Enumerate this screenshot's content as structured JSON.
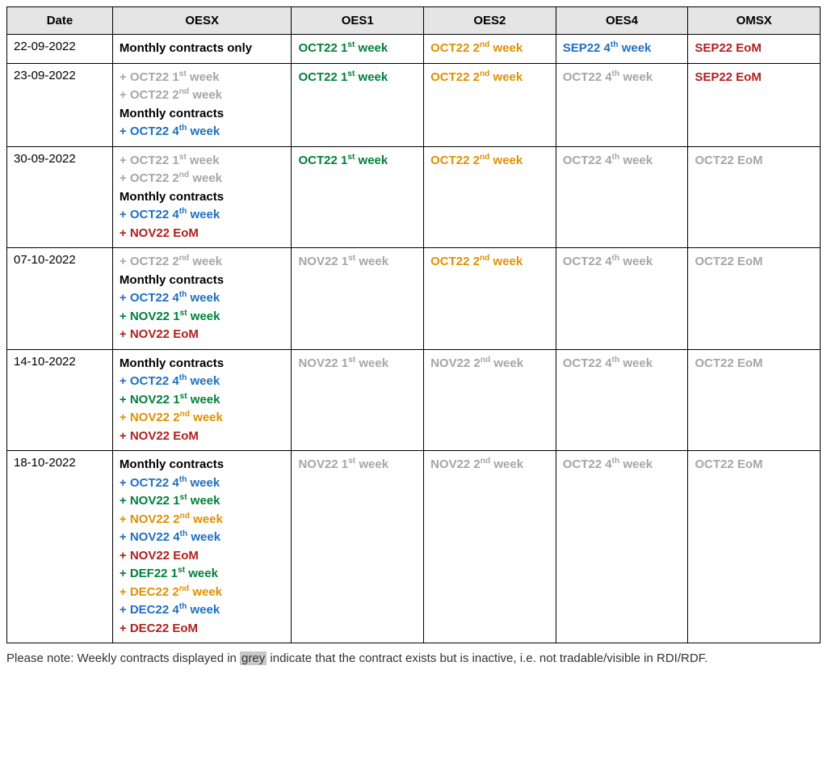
{
  "colors": {
    "black": "#000000",
    "grey": "#a6a6a6",
    "green": "#00803a",
    "orange": "#e09000",
    "blue": "#1f6fc0",
    "darkred": "#b02020"
  },
  "columns": [
    "Date",
    "OESX",
    "OES1",
    "OES2",
    "OES4",
    "OMSX"
  ],
  "rows": [
    {
      "date": "22-09-2022",
      "oesx": [
        {
          "text": "Monthly contracts only",
          "color": "black",
          "wrap": true
        }
      ],
      "oes1": [
        {
          "text": "OCT22 1st week",
          "color": "green",
          "ord": "st"
        }
      ],
      "oes2": [
        {
          "text": "OCT22 2nd week",
          "color": "orange",
          "ord": "nd"
        }
      ],
      "oes4": [
        {
          "text": "SEP22 4th week",
          "color": "blue",
          "ord": "th"
        }
      ],
      "omsx": [
        {
          "text": "SEP22 EoM",
          "color": "darkred"
        }
      ]
    },
    {
      "date": "23-09-2022",
      "oesx": [
        {
          "text": "+ OCT22 1st week",
          "color": "grey",
          "ord": "st"
        },
        {
          "text": "+ OCT22 2nd week",
          "color": "grey",
          "ord": "nd"
        },
        {
          "text": "Monthly contracts",
          "color": "black"
        },
        {
          "text": "+ OCT22 4th week",
          "color": "blue",
          "ord": "th"
        }
      ],
      "oes1": [
        {
          "text": "OCT22 1st week",
          "color": "green",
          "ord": "st"
        }
      ],
      "oes2": [
        {
          "text": "OCT22 2nd week",
          "color": "orange",
          "ord": "nd"
        }
      ],
      "oes4": [
        {
          "text": "OCT22 4th week",
          "color": "grey",
          "ord": "th"
        }
      ],
      "omsx": [
        {
          "text": "SEP22 EoM",
          "color": "darkred"
        }
      ]
    },
    {
      "date": "30-09-2022",
      "oesx": [
        {
          "text": "+ OCT22 1st week",
          "color": "grey",
          "ord": "st"
        },
        {
          "text": "+ OCT22 2nd week",
          "color": "grey",
          "ord": "nd"
        },
        {
          "text": "Monthly contracts",
          "color": "black"
        },
        {
          "text": "+ OCT22 4th week",
          "color": "blue",
          "ord": "th"
        },
        {
          "text": "+ NOV22 EoM",
          "color": "darkred"
        }
      ],
      "oes1": [
        {
          "text": "OCT22 1st week",
          "color": "green",
          "ord": "st"
        }
      ],
      "oes2": [
        {
          "text": "OCT22 2nd week",
          "color": "orange",
          "ord": "nd"
        }
      ],
      "oes4": [
        {
          "text": "OCT22 4th week",
          "color": "grey",
          "ord": "th"
        }
      ],
      "omsx": [
        {
          "text": "OCT22 EoM",
          "color": "grey"
        }
      ]
    },
    {
      "date": "07-10-2022",
      "oesx": [
        {
          "text": "+ OCT22 2nd week",
          "color": "grey",
          "ord": "nd"
        },
        {
          "text": "Monthly contracts",
          "color": "black"
        },
        {
          "text": "+ OCT22 4th week",
          "color": "blue",
          "ord": "th"
        },
        {
          "text": "+ NOV22 1st week",
          "color": "green",
          "ord": "st"
        },
        {
          "text": "+ NOV22 EoM",
          "color": "darkred"
        }
      ],
      "oes1": [
        {
          "text": "NOV22 1st week",
          "color": "grey",
          "ord": "st"
        }
      ],
      "oes2": [
        {
          "text": "OCT22 2nd week",
          "color": "orange",
          "ord": "nd"
        }
      ],
      "oes4": [
        {
          "text": "OCT22 4th week",
          "color": "grey",
          "ord": "th"
        }
      ],
      "omsx": [
        {
          "text": "OCT22 EoM",
          "color": "grey"
        }
      ]
    },
    {
      "date": "14-10-2022",
      "oesx": [
        {
          "text": "Monthly contracts",
          "color": "black"
        },
        {
          "text": "+ OCT22 4th week",
          "color": "blue",
          "ord": "th"
        },
        {
          "text": "+ NOV22 1st week",
          "color": "green",
          "ord": "st"
        },
        {
          "text": "+ NOV22 2nd week",
          "color": "orange",
          "ord": "nd"
        },
        {
          "text": "+ NOV22 EoM",
          "color": "darkred"
        }
      ],
      "oes1": [
        {
          "text": "NOV22 1st week",
          "color": "grey",
          "ord": "st"
        }
      ],
      "oes2": [
        {
          "text": "NOV22 2nd week",
          "color": "grey",
          "ord": "nd"
        }
      ],
      "oes4": [
        {
          "text": "OCT22 4th week",
          "color": "grey",
          "ord": "th"
        }
      ],
      "omsx": [
        {
          "text": "OCT22 EoM",
          "color": "grey"
        }
      ]
    },
    {
      "date": "18-10-2022",
      "oesx": [
        {
          "text": "Monthly contracts",
          "color": "black"
        },
        {
          "text": "+ OCT22 4th week",
          "color": "blue",
          "ord": "th"
        },
        {
          "text": "+ NOV22 1st week",
          "color": "green",
          "ord": "st"
        },
        {
          "text": "+ NOV22 2nd week",
          "color": "orange",
          "ord": "nd"
        },
        {
          "text": "+ NOV22 4th week",
          "color": "blue",
          "ord": "th"
        },
        {
          "text": "+ NOV22 EoM",
          "color": "darkred"
        },
        {
          "text": "+ DEF22 1st week",
          "color": "green",
          "ord": "st"
        },
        {
          "text": "+ DEC22 2nd week",
          "color": "orange",
          "ord": "nd"
        },
        {
          "text": "+ DEC22 4th week",
          "color": "blue",
          "ord": "th"
        },
        {
          "text": "+ DEC22 EoM",
          "color": "darkred"
        }
      ],
      "oes1": [
        {
          "text": "NOV22 1st week",
          "color": "grey",
          "ord": "st"
        }
      ],
      "oes2": [
        {
          "text": "NOV22 2nd week",
          "color": "grey",
          "ord": "nd"
        }
      ],
      "oes4": [
        {
          "text": "OCT22 4th week",
          "color": "grey",
          "ord": "th"
        }
      ],
      "omsx": [
        {
          "text": "OCT22 EoM",
          "color": "grey"
        }
      ]
    }
  ],
  "footnote": {
    "prefix": "Please note: Weekly contracts displayed in ",
    "highlight": "grey",
    "suffix": " indicate that the contract exists but is inactive, i.e. not tradable/visible in RDI/RDF."
  }
}
